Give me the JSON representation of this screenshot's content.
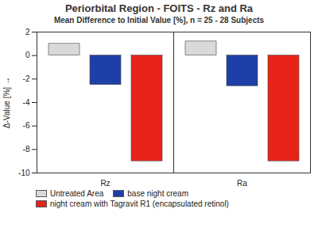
{
  "chart_data": {
    "type": "bar",
    "title": "Periorbital Region - FOITS - Rz and Ra",
    "subtitle": "Mean Difference to Initial Value [%], n = 25 - 28 Subjects",
    "y_label": "Δ-Value [%]",
    "categories": [
      "Rz",
      "Ra"
    ],
    "series": [
      {
        "name": "Untreated Area",
        "color": "#d9d9d9",
        "values": [
          1.0,
          1.2
        ]
      },
      {
        "name": "base night cream",
        "color": "#1f3fa8",
        "values": [
          -2.5,
          -2.6
        ]
      },
      {
        "name": "night cream with Tagravit R1 (encapsulated retinol)",
        "color": "#e8231a",
        "values": [
          -9.0,
          -9.0
        ]
      }
    ],
    "ylim": [
      -10,
      2
    ],
    "yticks": [
      -10,
      -8,
      -6,
      -4,
      -2,
      0,
      2
    ],
    "legend": "bottom",
    "grid": false
  }
}
